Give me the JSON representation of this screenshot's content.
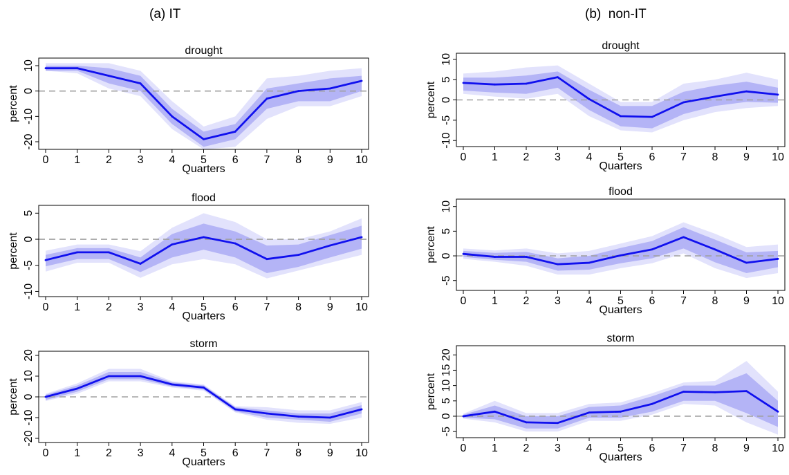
{
  "panel_titles": {
    "left": "(a) IT",
    "right": "(b)  non-IT"
  },
  "colors": {
    "line": "#1010ee",
    "band_inner": "#b4b4f6",
    "band_outer": "#e2e2fc",
    "zero_line": "#a0a0a0"
  },
  "chart_data": [
    {
      "type": "line",
      "panel": "IT",
      "title": "drought",
      "xlabel": "Quarters",
      "ylabel": "percent",
      "x": [
        0,
        1,
        2,
        3,
        4,
        5,
        6,
        7,
        8,
        9,
        10
      ],
      "xticks": [
        "0",
        "1",
        "2",
        "3",
        "4",
        "5",
        "6",
        "7",
        "8",
        "9",
        "10"
      ],
      "ylim": [
        -23,
        13
      ],
      "yticks": [
        -20,
        -10,
        0,
        10
      ],
      "ytick_labels": [
        "-20",
        "-10",
        "0",
        "10"
      ],
      "values": [
        9,
        9,
        6,
        3,
        -10,
        -19,
        -16,
        -3,
        0,
        1,
        4
      ],
      "band_inner_lower": [
        8,
        8,
        3,
        0,
        -13,
        -22,
        -19,
        -7,
        -4,
        -4,
        0
      ],
      "band_inner_upper": [
        10,
        10,
        9,
        6,
        -7,
        -16,
        -13,
        1,
        3,
        5,
        6
      ],
      "band_outer_lower": [
        8,
        7,
        1,
        -2,
        -15,
        -23,
        -22,
        -11,
        -6,
        -6,
        -2
      ],
      "band_outer_upper": [
        11,
        11,
        11,
        8,
        -4,
        -14,
        -10,
        5,
        6,
        8,
        9
      ],
      "zero_line": true,
      "grid": false
    },
    {
      "type": "line",
      "panel": "IT",
      "title": "flood",
      "xlabel": "Quarters",
      "ylabel": "percent",
      "x": [
        0,
        1,
        2,
        3,
        4,
        5,
        6,
        7,
        8,
        9,
        10
      ],
      "xticks": [
        "0",
        "1",
        "2",
        "3",
        "4",
        "5",
        "6",
        "7",
        "8",
        "9",
        "10"
      ],
      "ylim": [
        -11,
        6.5
      ],
      "yticks": [
        -10,
        -5,
        0,
        5
      ],
      "ytick_labels": [
        "-10",
        "-5",
        "0",
        "5"
      ],
      "values": [
        -4,
        -2.5,
        -2.5,
        -4.7,
        -1,
        0.4,
        -0.8,
        -3.8,
        -3,
        -1.2,
        0.4
      ],
      "band_inner_lower": [
        -5.2,
        -3.8,
        -3.8,
        -6.3,
        -3.5,
        -2,
        -3.5,
        -6.5,
        -5.3,
        -3.5,
        -1.8
      ],
      "band_inner_upper": [
        -3,
        -1.7,
        -1.7,
        -3.5,
        1,
        3,
        1.5,
        -1.2,
        -1,
        0.8,
        2.6
      ],
      "band_outer_lower": [
        -6.2,
        -4.5,
        -4.5,
        -7.4,
        -4.8,
        -3.8,
        -4.8,
        -7.5,
        -6,
        -4.5,
        -3
      ],
      "band_outer_upper": [
        -2.2,
        -1,
        -1,
        -2.3,
        2.2,
        5,
        3.3,
        0,
        0,
        1.5,
        4
      ],
      "zero_line": true,
      "grid": false
    },
    {
      "type": "line",
      "panel": "IT",
      "title": "storm",
      "xlabel": "Quarters",
      "ylabel": "percent",
      "x": [
        0,
        1,
        2,
        3,
        4,
        5,
        6,
        7,
        8,
        9,
        10
      ],
      "xticks": [
        "0",
        "1",
        "2",
        "3",
        "4",
        "5",
        "6",
        "7",
        "8",
        "9",
        "10"
      ],
      "ylim": [
        -22,
        22
      ],
      "yticks": [
        -20,
        -10,
        0,
        10,
        20
      ],
      "ytick_labels": [
        "-20",
        "-10",
        "0",
        "10",
        "20"
      ],
      "values": [
        0,
        4,
        10,
        10,
        6,
        4.5,
        -6,
        -8,
        -9.5,
        -10,
        -6
      ],
      "band_inner_lower": [
        -1.5,
        2.5,
        8.5,
        8.5,
        5,
        3.5,
        -7,
        -10,
        -11,
        -12,
        -8
      ],
      "band_inner_upper": [
        1,
        5.5,
        12,
        12,
        7,
        5.5,
        -5,
        -6.5,
        -8,
        -8,
        -4
      ],
      "band_outer_lower": [
        -2,
        1.5,
        7.5,
        7.5,
        4.5,
        3,
        -7.5,
        -11,
        -12.5,
        -13,
        -10
      ],
      "band_outer_upper": [
        1.5,
        6.5,
        13.5,
        13.5,
        7.5,
        6,
        -4.5,
        -5,
        -6.5,
        -6.5,
        -2.5
      ],
      "zero_line": true,
      "grid": false
    },
    {
      "type": "line",
      "panel": "non-IT",
      "title": "drought",
      "xlabel": "Quarters",
      "ylabel": "percent",
      "x": [
        0,
        1,
        2,
        3,
        4,
        5,
        6,
        7,
        8,
        9,
        10
      ],
      "xticks": [
        "0",
        "1",
        "2",
        "3",
        "4",
        "5",
        "6",
        "7",
        "8",
        "9",
        "10"
      ],
      "ylim": [
        -11.5,
        11.5
      ],
      "yticks": [
        -10,
        -5,
        0,
        5,
        10
      ],
      "ytick_labels": [
        "-10",
        "-5",
        "0",
        "5",
        "10"
      ],
      "values": [
        4.2,
        3.8,
        4,
        5.6,
        0.2,
        -4,
        -4.2,
        -0.6,
        0.8,
        2.1,
        1.3
      ],
      "band_inner_lower": [
        2.3,
        1.8,
        1.5,
        3,
        -2.5,
        -6.5,
        -7,
        -3.5,
        -1.5,
        -0.5,
        -0.7
      ],
      "band_inner_upper": [
        5.5,
        5.5,
        6,
        7,
        2.5,
        -1.5,
        -1.5,
        2,
        3.5,
        4.5,
        3
      ],
      "band_outer_lower": [
        1.5,
        0.8,
        0.3,
        1.5,
        -4,
        -7.5,
        -8,
        -5,
        -3,
        -2,
        -1.5
      ],
      "band_outer_upper": [
        6.5,
        7,
        8,
        8.5,
        4,
        -0.5,
        -0.5,
        4,
        5,
        6.7,
        5
      ],
      "zero_line": true,
      "grid": false
    },
    {
      "type": "line",
      "panel": "non-IT",
      "title": "flood",
      "xlabel": "Quarters",
      "ylabel": "percent",
      "x": [
        0,
        1,
        2,
        3,
        4,
        5,
        6,
        7,
        8,
        9,
        10
      ],
      "xticks": [
        "0",
        "1",
        "2",
        "3",
        "4",
        "5",
        "6",
        "7",
        "8",
        "9",
        "10"
      ],
      "ylim": [
        -7,
        11.5
      ],
      "yticks": [
        -5,
        0,
        5,
        10
      ],
      "ytick_labels": [
        "-5",
        "0",
        "5",
        "10"
      ],
      "values": [
        0.4,
        -0.2,
        -0.2,
        -1.7,
        -1.4,
        0.1,
        1.3,
        3.8,
        1.3,
        -1.4,
        -0.6
      ],
      "band_inner_lower": [
        -0.2,
        -0.8,
        -1.2,
        -3,
        -2.8,
        -1.5,
        -0.5,
        1.5,
        -1.3,
        -3.5,
        -2.3
      ],
      "band_inner_upper": [
        1,
        0.6,
        0.8,
        -0.5,
        0,
        1.6,
        3,
        5.8,
        3.3,
        0.7,
        1
      ],
      "band_outer_lower": [
        -0.6,
        -1.2,
        -2,
        -3.8,
        -3.8,
        -2.5,
        -1.5,
        0.5,
        -2.5,
        -4.5,
        -3.5
      ],
      "band_outer_upper": [
        1.5,
        1.1,
        1.5,
        0.5,
        1,
        2.5,
        4,
        6.8,
        4.5,
        1.8,
        2.3
      ],
      "zero_line": true,
      "grid": false
    },
    {
      "type": "line",
      "panel": "non-IT",
      "title": "storm",
      "xlabel": "Quarters",
      "ylabel": "percent",
      "x": [
        0,
        1,
        2,
        3,
        4,
        5,
        6,
        7,
        8,
        9,
        10
      ],
      "xticks": [
        "0",
        "1",
        "2",
        "3",
        "4",
        "5",
        "6",
        "7",
        "8",
        "9",
        "10"
      ],
      "ylim": [
        -7,
        23
      ],
      "yticks": [
        -5,
        0,
        5,
        10,
        15,
        20
      ],
      "ytick_labels": [
        "-5",
        "0",
        "5",
        "10",
        "15",
        "20"
      ],
      "values": [
        0,
        1.5,
        -2,
        -2.2,
        1.2,
        1.5,
        4,
        8,
        7.8,
        8.2,
        1.5
      ],
      "band_inner_lower": [
        -0.5,
        -1,
        -4,
        -4,
        -0.5,
        -0.5,
        1.5,
        5,
        5,
        1,
        -3.5
      ],
      "band_inner_upper": [
        0.5,
        3.5,
        0,
        0,
        3,
        3.5,
        6.5,
        10,
        10,
        14,
        5
      ],
      "band_outer_lower": [
        -0.8,
        -2,
        -5,
        -5,
        -1.5,
        -1.5,
        0.5,
        4,
        3.5,
        -2,
        -6
      ],
      "band_outer_upper": [
        0.8,
        5,
        1,
        1,
        4,
        4.5,
        7.5,
        11,
        11.5,
        18,
        8
      ],
      "zero_line": true,
      "grid": false
    }
  ]
}
